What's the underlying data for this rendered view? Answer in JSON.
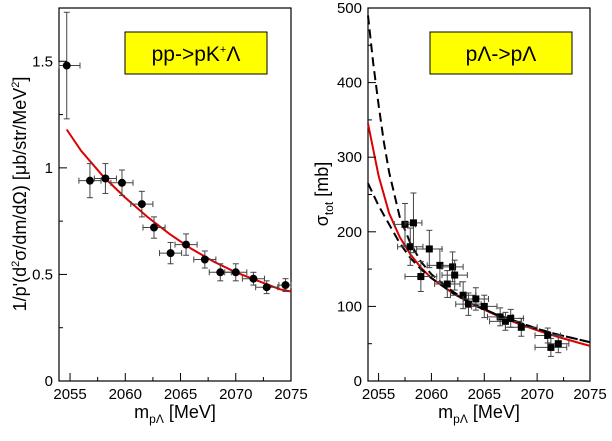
{
  "chart_data": [
    {
      "type": "scatter",
      "annotation": "pp->pK⁺Λ",
      "annotation_box_color": "#ffff00",
      "xlabel": "m_pΛ [MeV]",
      "ylabel": "1/p'(d²σ/dm/dΩ)  [μb/str/MeV²]",
      "xlim": [
        2054,
        2075
      ],
      "ylim": [
        0,
        1.75
      ],
      "xticks": [
        "2055",
        "2060",
        "2065",
        "2070",
        "2075"
      ],
      "yticks": [
        "0",
        "0.5",
        "1",
        "1.5"
      ],
      "points": [
        {
          "x": 2054.7,
          "y": 1.48,
          "xerr": 1.2,
          "yerr": 0.25
        },
        {
          "x": 2056.8,
          "y": 0.94,
          "xerr": 1.0,
          "yerr": 0.08
        },
        {
          "x": 2058.2,
          "y": 0.95,
          "xerr": 1.0,
          "yerr": 0.07
        },
        {
          "x": 2059.7,
          "y": 0.93,
          "xerr": 1.0,
          "yerr": 0.06
        },
        {
          "x": 2061.5,
          "y": 0.83,
          "xerr": 1.0,
          "yerr": 0.06
        },
        {
          "x": 2062.6,
          "y": 0.72,
          "xerr": 1.0,
          "yerr": 0.05
        },
        {
          "x": 2064.1,
          "y": 0.6,
          "xerr": 1.0,
          "yerr": 0.05
        },
        {
          "x": 2065.5,
          "y": 0.64,
          "xerr": 1.0,
          "yerr": 0.05
        },
        {
          "x": 2067.2,
          "y": 0.57,
          "xerr": 1.0,
          "yerr": 0.04
        },
        {
          "x": 2068.6,
          "y": 0.51,
          "xerr": 1.0,
          "yerr": 0.04
        },
        {
          "x": 2070.0,
          "y": 0.51,
          "xerr": 1.0,
          "yerr": 0.04
        },
        {
          "x": 2071.6,
          "y": 0.48,
          "xerr": 1.0,
          "yerr": 0.03
        },
        {
          "x": 2072.8,
          "y": 0.44,
          "xerr": 1.0,
          "yerr": 0.03
        },
        {
          "x": 2074.5,
          "y": 0.45,
          "xerr": 0.6,
          "yerr": 0.03
        }
      ],
      "curves": [
        {
          "color": "#dd0000",
          "dash": "solid",
          "x": [
            2054.7,
            2056,
            2058,
            2060,
            2062,
            2064,
            2066,
            2068,
            2070,
            2072,
            2074,
            2075
          ],
          "y": [
            1.18,
            1.08,
            0.96,
            0.86,
            0.77,
            0.69,
            0.62,
            0.56,
            0.51,
            0.47,
            0.43,
            0.42
          ]
        }
      ]
    },
    {
      "type": "scatter",
      "annotation": "pΛ->pΛ",
      "annotation_box_color": "#ffff00",
      "xlabel": "m_pΛ [MeV]",
      "ylabel": "σ_tot [mb]",
      "xlim": [
        2054,
        2075
      ],
      "ylim": [
        0,
        500
      ],
      "xticks": [
        "2055",
        "2060",
        "2065",
        "2070",
        "2075"
      ],
      "yticks": [
        "0",
        "100",
        "200",
        "300",
        "400",
        "500"
      ],
      "points": [
        {
          "x": 2057.5,
          "y": 210,
          "xerr": 1.0,
          "yerr": 28
        },
        {
          "x": 2058.0,
          "y": 180,
          "xerr": 1.2,
          "yerr": 25
        },
        {
          "x": 2058.3,
          "y": 212,
          "xerr": 0.8,
          "yerr": 40
        },
        {
          "x": 2059.0,
          "y": 140,
          "xerr": 1.5,
          "yerr": 20
        },
        {
          "x": 2059.8,
          "y": 177,
          "xerr": 1.2,
          "yerr": 25
        },
        {
          "x": 2060.8,
          "y": 155,
          "xerr": 1.2,
          "yerr": 22
        },
        {
          "x": 2061.5,
          "y": 130,
          "xerr": 1.2,
          "yerr": 18
        },
        {
          "x": 2062.0,
          "y": 153,
          "xerr": 1.0,
          "yerr": 20
        },
        {
          "x": 2062.2,
          "y": 142,
          "xerr": 1.2,
          "yerr": 20
        },
        {
          "x": 2063.0,
          "y": 115,
          "xerr": 1.2,
          "yerr": 18
        },
        {
          "x": 2063.5,
          "y": 103,
          "xerr": 1.2,
          "yerr": 15
        },
        {
          "x": 2064.2,
          "y": 110,
          "xerr": 1.2,
          "yerr": 15
        },
        {
          "x": 2065.0,
          "y": 100,
          "xerr": 1.2,
          "yerr": 15
        },
        {
          "x": 2066.5,
          "y": 86,
          "xerr": 1.2,
          "yerr": 12
        },
        {
          "x": 2067.0,
          "y": 80,
          "xerr": 1.5,
          "yerr": 12
        },
        {
          "x": 2067.5,
          "y": 84,
          "xerr": 1.2,
          "yerr": 12
        },
        {
          "x": 2068.5,
          "y": 72,
          "xerr": 1.5,
          "yerr": 12
        },
        {
          "x": 2071.0,
          "y": 61,
          "xerr": 1.2,
          "yerr": 10
        },
        {
          "x": 2071.3,
          "y": 45,
          "xerr": 1.5,
          "yerr": 12
        },
        {
          "x": 2072.0,
          "y": 50,
          "xerr": 1.0,
          "yerr": 12
        }
      ],
      "curves": [
        {
          "color": "#dd0000",
          "dash": "solid",
          "x": [
            2054,
            2055,
            2056,
            2057,
            2058,
            2059,
            2060,
            2062,
            2064,
            2066,
            2068,
            2070,
            2072,
            2074,
            2075
          ],
          "y": [
            345,
            275,
            225,
            193,
            170,
            152,
            138,
            118,
            102,
            89,
            78,
            68,
            59,
            51,
            47
          ]
        },
        {
          "color": "#000000",
          "dash": "dashed",
          "x": [
            2054,
            2054.5,
            2055,
            2055.5,
            2056,
            2057,
            2058,
            2059,
            2060,
            2062,
            2064,
            2066,
            2068,
            2070,
            2072,
            2075
          ],
          "y": [
            490,
            425,
            370,
            320,
            280,
            220,
            185,
            160,
            143,
            120,
            103,
            90,
            80,
            70,
            62,
            52
          ]
        },
        {
          "color": "#000000",
          "dash": "dashed",
          "x": [
            2054,
            2055,
            2056,
            2057,
            2058,
            2059,
            2060,
            2062,
            2064,
            2066,
            2068,
            2070,
            2072,
            2075
          ],
          "y": [
            265,
            235,
            210,
            185,
            165,
            150,
            138,
            118,
            102,
            90,
            80,
            70,
            62,
            52
          ]
        }
      ]
    }
  ]
}
